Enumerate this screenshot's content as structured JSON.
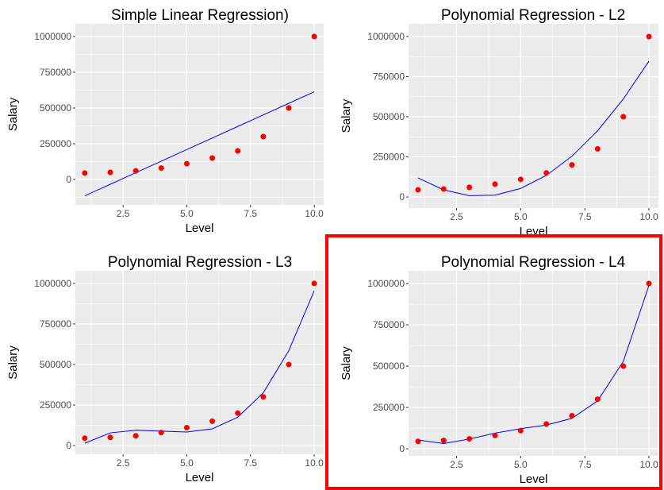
{
  "chart_data": [
    {
      "type": "scatter+line",
      "title": "Simple Linear Regression)",
      "xlabel": "Level",
      "ylabel": "Salary",
      "xlim": [
        0.63,
        10.37
      ],
      "ylim": [
        -178000,
        1089000
      ],
      "xticks": [
        2.5,
        5.0,
        7.5,
        10.0
      ],
      "xtick_labels": [
        "2.5",
        "5.0",
        "7.5",
        "10.0"
      ],
      "yticks": [
        0,
        250000,
        500000,
        750000,
        1000000
      ],
      "ytick_labels": [
        "0",
        "250000",
        "500000",
        "750000",
        "1000000"
      ],
      "grid": true,
      "x": [
        1,
        2,
        3,
        4,
        5,
        6,
        7,
        8,
        9,
        10
      ],
      "points": [
        45000,
        50000,
        60000,
        80000,
        110000,
        150000,
        200000,
        300000,
        500000,
        1000000
      ],
      "fit": [
        -114455,
        -33576,
        47303,
        128182,
        209061,
        289939,
        370818,
        451697,
        532576,
        613455
      ],
      "point_color": "#ff0000",
      "line_color": "#0000ff",
      "highlighted": false
    },
    {
      "type": "scatter+line",
      "title": "Polynomial Regression - L2",
      "xlabel": "Level",
      "ylabel": "Salary",
      "xlim": [
        0.63,
        10.37
      ],
      "ylim": [
        -69000,
        1079000
      ],
      "xticks": [
        2.5,
        5.0,
        7.5,
        10.0
      ],
      "xtick_labels": [
        "2.5",
        "5.0",
        "7.5",
        "10.0"
      ],
      "yticks": [
        0,
        250000,
        500000,
        750000,
        1000000
      ],
      "ytick_labels": [
        "0",
        "250000",
        "500000",
        "750000",
        "1000000"
      ],
      "grid": true,
      "x": [
        1,
        2,
        3,
        4,
        5,
        6,
        7,
        8,
        9,
        10
      ],
      "points": [
        45000,
        50000,
        60000,
        80000,
        110000,
        150000,
        200000,
        300000,
        500000,
        1000000
      ],
      "fit": [
        118727,
        44152,
        8439,
        11591,
        53606,
        134485,
        254227,
        412833,
        610303,
        846636
      ],
      "point_color": "#ff0000",
      "line_color": "#0000ff",
      "highlighted": false
    },
    {
      "type": "scatter+line",
      "title": "Polynomial Regression - L3",
      "xlabel": "Level",
      "ylabel": "Salary",
      "xlim": [
        0.63,
        10.37
      ],
      "ylim": [
        -54000,
        1078000
      ],
      "xticks": [
        2.5,
        5.0,
        7.5,
        10.0
      ],
      "xtick_labels": [
        "2.5",
        "5.0",
        "7.5",
        "10.0"
      ],
      "yticks": [
        0,
        250000,
        500000,
        750000,
        1000000
      ],
      "ytick_labels": [
        "0",
        "250000",
        "500000",
        "750000",
        "1000000"
      ],
      "grid": true,
      "x": [
        1,
        2,
        3,
        4,
        5,
        6,
        7,
        8,
        9,
        10
      ],
      "points": [
        45000,
        50000,
        60000,
        80000,
        110000,
        150000,
        200000,
        300000,
        500000,
        1000000
      ],
      "fit": [
        14000,
        78000,
        94000,
        89000,
        83000,
        103000,
        175000,
        325000,
        585000,
        955000
      ],
      "point_color": "#ff0000",
      "line_color": "#0000ff",
      "highlighted": false
    },
    {
      "type": "scatter+line",
      "title": "Polynomial Regression - L4",
      "xlabel": "Level",
      "ylabel": "Salary",
      "xlim": [
        0.63,
        10.37
      ],
      "ylim": [
        -43000,
        1077000
      ],
      "xticks": [
        2.5,
        5.0,
        7.5,
        10.0
      ],
      "xtick_labels": [
        "2.5",
        "5.0",
        "7.5",
        "10.0"
      ],
      "yticks": [
        0,
        250000,
        500000,
        750000,
        1000000
      ],
      "ytick_labels": [
        "0",
        "250000",
        "500000",
        "750000",
        "1000000"
      ],
      "grid": true,
      "x": [
        1,
        2,
        3,
        4,
        5,
        6,
        7,
        8,
        9,
        10
      ],
      "points": [
        45000,
        50000,
        60000,
        80000,
        110000,
        150000,
        200000,
        300000,
        500000,
        1000000
      ],
      "fit": [
        53357,
        31760,
        58642,
        94632,
        121724,
        143275,
        184003,
        289994,
        528694,
        988916
      ],
      "point_color": "#ff0000",
      "line_color": "#0000ff",
      "highlighted": true,
      "highlight_color": "#ff0000"
    }
  ]
}
